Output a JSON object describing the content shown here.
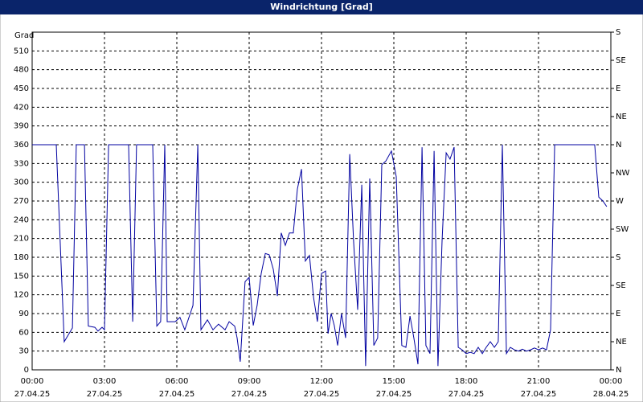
{
  "chart_data": {
    "type": "line",
    "title": "Windrichtung [Grad]",
    "y_label": "Grad",
    "x": [
      0,
      1,
      1.33,
      1.67,
      1.83,
      2.17,
      2.33,
      2.6,
      2.73,
      2.9,
      3,
      3.17,
      4,
      4.17,
      4.33,
      5,
      5.17,
      5.33,
      5.5,
      5.6,
      5.93,
      6.13,
      6.33,
      6.67,
      6.87,
      7,
      7.27,
      7.5,
      7.73,
      8,
      8.17,
      8.4,
      8.5,
      8.63,
      8.83,
      9,
      9.17,
      9.33,
      9.5,
      9.67,
      9.83,
      10,
      10.17,
      10.33,
      10.5,
      10.67,
      10.83,
      11,
      11.17,
      11.33,
      11.5,
      11.67,
      11.83,
      12,
      12.17,
      12.27,
      12.4,
      12.53,
      12.67,
      12.83,
      13,
      13.17,
      13.33,
      13.5,
      13.67,
      13.83,
      14,
      14.17,
      14.33,
      14.5,
      14.67,
      14.9,
      15.1,
      15.33,
      15.5,
      15.67,
      15.83,
      16,
      16.17,
      16.33,
      16.5,
      16.67,
      16.83,
      17,
      17.17,
      17.33,
      17.5,
      17.67,
      17.83,
      18,
      18.17,
      18.33,
      18.5,
      18.67,
      18.83,
      19,
      19.17,
      19.33,
      19.5,
      19.67,
      19.83,
      20,
      20.17,
      20.33,
      20.5,
      20.67,
      20.83,
      21,
      21.17,
      21.33,
      21.5,
      21.67,
      23.33,
      23.5,
      23.67,
      23.83
    ],
    "series": [
      {
        "name": "Windrichtung",
        "color": "#0000a0",
        "values": [
          360,
          360,
          45,
          67,
          360,
          360,
          70,
          68,
          62,
          68,
          64,
          360,
          360,
          77,
          360,
          360,
          70,
          77,
          360,
          77,
          77,
          84,
          64,
          103,
          360,
          64,
          80,
          64,
          73,
          64,
          77,
          70,
          51,
          13,
          141,
          148,
          71,
          103,
          154,
          186,
          184,
          161,
          118,
          219,
          199,
          219,
          219,
          289,
          321,
          174,
          183,
          116,
          77,
          154,
          158,
          58,
          90,
          71,
          39,
          90,
          51,
          345,
          206,
          96,
          296,
          6,
          306,
          39,
          51,
          328,
          334,
          350,
          309,
          39,
          36,
          86,
          51,
          9,
          356,
          39,
          26,
          350,
          6,
          206,
          347,
          337,
          356,
          36,
          32,
          26,
          28,
          26,
          36,
          26,
          36,
          45,
          36,
          45,
          360,
          26,
          36,
          32,
          30,
          33,
          30,
          32,
          35,
          32,
          35,
          32,
          64,
          360,
          360,
          276,
          270,
          261
        ]
      }
    ],
    "xlim": [
      0,
      24
    ],
    "xticks": [
      {
        "value": 0,
        "label": "00:00",
        "date": "27.04.25"
      },
      {
        "value": 3,
        "label": "03:00",
        "date": "27.04.25"
      },
      {
        "value": 6,
        "label": "06:00",
        "date": "27.04.25"
      },
      {
        "value": 9,
        "label": "09:00",
        "date": "27.04.25"
      },
      {
        "value": 12,
        "label": "12:00",
        "date": "27.04.25"
      },
      {
        "value": 15,
        "label": "15:00",
        "date": "27.04.25"
      },
      {
        "value": 18,
        "label": "18:00",
        "date": "27.04.25"
      },
      {
        "value": 21,
        "label": "21:00",
        "date": "27.04.25"
      },
      {
        "value": 24,
        "label": "00:00",
        "date": "28.04.25"
      }
    ],
    "ylim": [
      0,
      540
    ],
    "yticks": [
      0,
      30,
      60,
      90,
      120,
      150,
      180,
      210,
      240,
      270,
      300,
      330,
      360,
      390,
      420,
      450,
      480,
      510
    ],
    "y2lim": [
      0,
      540
    ],
    "y2ticks": [
      {
        "value": 0,
        "label": "N"
      },
      {
        "value": 45,
        "label": "NE"
      },
      {
        "value": 90,
        "label": "E"
      },
      {
        "value": 135,
        "label": "SE"
      },
      {
        "value": 180,
        "label": "S"
      },
      {
        "value": 225,
        "label": "SW"
      },
      {
        "value": 270,
        "label": "W"
      },
      {
        "value": 315,
        "label": "NW"
      },
      {
        "value": 360,
        "label": "N"
      },
      {
        "value": 405,
        "label": "NE"
      },
      {
        "value": 450,
        "label": "E"
      },
      {
        "value": 495,
        "label": "SE"
      },
      {
        "value": 540,
        "label": "S"
      }
    ],
    "grid": true
  }
}
